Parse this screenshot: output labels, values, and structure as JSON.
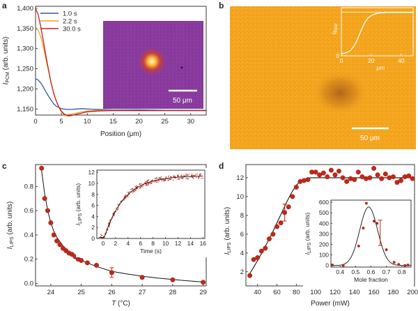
{
  "panels": {
    "a": {
      "label": "a",
      "chart": {
        "type": "line",
        "xlabel_parts": [
          "Position (",
          "μm",
          ")"
        ],
        "ylabel_parts": [
          "I",
          "PCM",
          " (arb. units)"
        ],
        "xlim": [
          0,
          33
        ],
        "ylim": [
          1135,
          1405
        ],
        "xticks": [
          0,
          5,
          10,
          15,
          20,
          25,
          30
        ],
        "yticks": [
          1150,
          1200,
          1250,
          1300,
          1350,
          1400
        ],
        "ytick_labels": [
          "1,150",
          "1,200",
          "1,250",
          "1,300",
          "1,350",
          "1,400"
        ],
        "legend_position": "top-left",
        "series": [
          {
            "name": "1.0 s",
            "color": "#3355aa",
            "x": [
              0,
              0.5,
              1,
              1.5,
              2,
              2.5,
              3,
              3.5,
              4,
              5,
              6,
              7,
              8,
              9,
              10,
              12,
              15,
              20,
              25,
              30,
              33
            ],
            "y": [
              1225,
              1222,
              1215,
              1205,
              1193,
              1182,
              1172,
              1163,
              1157,
              1151,
              1149,
              1149,
              1150,
              1151,
              1150,
              1149,
              1148,
              1148,
              1147,
              1147,
              1147
            ]
          },
          {
            "name": "2.2 s",
            "color": "#f0a020",
            "x": [
              0,
              0.5,
              1,
              1.5,
              2,
              2.5,
              3,
              3.5,
              4,
              4.5,
              5,
              5.5,
              6,
              7,
              8,
              9,
              10,
              12,
              15,
              20,
              25,
              30,
              33
            ],
            "y": [
              1350,
              1345,
              1330,
              1305,
              1275,
              1245,
              1215,
              1190,
              1170,
              1155,
              1142,
              1137,
              1136,
              1137,
              1140,
              1143,
              1145,
              1147,
              1147,
              1146,
              1146,
              1146,
              1146
            ]
          },
          {
            "name": "30.0 s",
            "color": "#c02020",
            "x": [
              0,
              0.5,
              1,
              1.5,
              2,
              2.5,
              3,
              3.5,
              4,
              4.5,
              5,
              5.5,
              6,
              6.5,
              7,
              8,
              9,
              10,
              11,
              12,
              15,
              20,
              25,
              30,
              33
            ],
            "y": [
              1400,
              1385,
              1355,
              1320,
              1283,
              1248,
              1215,
              1190,
              1170,
              1155,
              1145,
              1138,
              1134,
              1133,
              1134,
              1137,
              1140,
              1143,
              1144,
              1145,
              1146,
              1146,
              1146,
              1146,
              1146
            ]
          }
        ]
      },
      "inset": {
        "scale_bar": "50 μm"
      }
    },
    "b": {
      "label": "b",
      "scale_bar": "50 μm",
      "inset_chart": {
        "type": "line",
        "ylabel_parts": [
          "I",
          "fluor"
        ],
        "xlabel": "μm",
        "xlim": [
          0,
          48
        ],
        "ylim": [
          0,
          1.1
        ],
        "xticks": [
          0,
          20,
          40
        ],
        "yticks": [
          0
        ],
        "ytick_labels": [
          "0"
        ],
        "plateau": 1.0,
        "x": [
          0,
          2,
          4,
          6,
          8,
          10,
          12,
          14,
          16,
          18,
          20,
          22,
          24,
          26,
          28,
          30,
          33,
          36,
          40,
          44,
          48
        ],
        "y": [
          0.05,
          0.06,
          0.08,
          0.12,
          0.2,
          0.32,
          0.48,
          0.64,
          0.78,
          0.87,
          0.92,
          0.95,
          0.97,
          0.98,
          0.98,
          0.99,
          0.99,
          0.99,
          0.99,
          0.99,
          0.99
        ]
      }
    },
    "c": {
      "label": "c",
      "chart": {
        "type": "scatter",
        "xlabel_parts": [
          "T",
          " (°C)"
        ],
        "ylabel_parts": [
          "I",
          "LIPS",
          " (arb. units)"
        ],
        "xlim": [
          23.5,
          29.1
        ],
        "ylim": [
          -0.02,
          0.98
        ],
        "xticks": [
          24,
          25,
          26,
          27,
          28,
          29
        ],
        "yticks": [
          0,
          0.2,
          0.4,
          0.6,
          0.8
        ],
        "ytick_labels": [
          "0.0",
          "0.2",
          "0.4",
          "0.6",
          "0.8"
        ],
        "points": {
          "x": [
            23.7,
            23.8,
            23.9,
            24.0,
            24.1,
            24.2,
            24.3,
            24.4,
            24.5,
            24.6,
            24.7,
            24.8,
            24.9,
            25.0,
            25.2,
            25.5,
            26.0,
            27.0,
            28.0,
            29.0
          ],
          "y": [
            0.95,
            0.7,
            0.6,
            0.5,
            0.4,
            0.35,
            0.32,
            0.29,
            0.27,
            0.25,
            0.24,
            0.22,
            0.2,
            0.19,
            0.17,
            0.15,
            0.09,
            0.05,
            0.03,
            0.01
          ],
          "error_bar": {
            "x": 26.0,
            "y": 0.09,
            "err": 0.04
          }
        },
        "fit": {
          "x": [
            23.7,
            23.8,
            23.9,
            24.0,
            24.1,
            24.2,
            24.4,
            24.6,
            24.8,
            25.0,
            25.5,
            26.0,
            26.5,
            27.0,
            27.5,
            28.0,
            28.5,
            29.0
          ],
          "y": [
            0.93,
            0.74,
            0.6,
            0.5,
            0.43,
            0.38,
            0.31,
            0.26,
            0.22,
            0.19,
            0.14,
            0.1,
            0.078,
            0.06,
            0.045,
            0.033,
            0.022,
            0.012
          ]
        }
      },
      "inset": {
        "type": "scatter",
        "xlabel": "Time (s)",
        "ylabel_parts": [
          "I",
          "LIPS",
          " (arb. units)"
        ],
        "xlim": [
          -1,
          16.3
        ],
        "ylim": [
          0,
          12.4
        ],
        "xticks": [
          0,
          2,
          4,
          6,
          8,
          10,
          12,
          14,
          16
        ],
        "yticks": [
          0,
          2,
          4,
          6,
          8,
          10,
          12
        ],
        "fit_amplitude": 11.2,
        "fit_tau": 3.2,
        "fit_t0": 0.2,
        "noise_count": 300,
        "noise_amp": 0.45
      }
    },
    "d": {
      "label": "d",
      "chart": {
        "type": "scatter",
        "xlabel": "Power (mW)",
        "ylabel_parts": [
          "I",
          "LIPS",
          " (arb. units)"
        ],
        "xlim": [
          28,
          202
        ],
        "ylim": [
          0.5,
          13.4
        ],
        "xticks": [
          40,
          60,
          80,
          100,
          120,
          140,
          160,
          180,
          200
        ],
        "yticks": [
          2,
          4,
          6,
          8,
          10,
          12
        ],
        "points": {
          "x": [
            32,
            36,
            40,
            44,
            48,
            52,
            56,
            60,
            64,
            68,
            72,
            76,
            80,
            84,
            88,
            92,
            96,
            100,
            104,
            108,
            112,
            116,
            120,
            124,
            128,
            132,
            136,
            140,
            144,
            148,
            152,
            156,
            160,
            164,
            168,
            172,
            176,
            180,
            184,
            188,
            192,
            196,
            200
          ],
          "y": [
            1.6,
            3.3,
            3.5,
            4.2,
            4.5,
            5.5,
            6.0,
            6.8,
            7.2,
            8.3,
            8.9,
            10.0,
            11.0,
            11.6,
            11.7,
            11.8,
            12.6,
            12.6,
            12.3,
            12.5,
            12.1,
            12.8,
            12.3,
            12.7,
            12.0,
            11.6,
            11.9,
            11.8,
            12.6,
            12.1,
            11.9,
            12.0,
            13.0,
            12.3,
            11.9,
            12.4,
            12.0,
            12.1,
            11.5,
            11.7,
            12.1,
            12.2,
            11.9
          ],
          "error_bar": {
            "x": 68,
            "y": 8.3,
            "err": 0.9
          }
        },
        "fit": {
          "x": [
            30,
            35,
            40,
            45,
            50,
            55,
            60,
            65,
            70,
            75,
            80,
            85,
            90,
            95,
            100,
            110,
            120,
            140,
            160,
            180,
            200
          ],
          "y": [
            1.5,
            2.3,
            3.2,
            4.1,
            5.1,
            6.1,
            7.2,
            8.3,
            9.4,
            10.4,
            11.2,
            11.7,
            11.9,
            12.0,
            12.0,
            12.0,
            12.0,
            12.0,
            12.0,
            12.0,
            12.0
          ]
        }
      },
      "inset": {
        "type": "scatter",
        "xlabel": "Mole fraction",
        "ylabel_parts": [
          "I",
          "LIPS",
          " (arb. units)"
        ],
        "xlim": [
          0.34,
          0.86
        ],
        "ylim": [
          -15,
          620
        ],
        "xticks": [
          0.4,
          0.5,
          0.6,
          0.7,
          0.8
        ],
        "yticks": [
          0,
          100,
          200,
          300,
          400,
          500,
          600
        ],
        "points": {
          "x": [
            0.35,
            0.42,
            0.52,
            0.55,
            0.57,
            0.62,
            0.64,
            0.7,
            0.75,
            0.78,
            0.82,
            0.84
          ],
          "y": [
            5,
            0,
            185,
            355,
            590,
            420,
            400,
            150,
            30,
            10,
            0,
            5
          ],
          "error_bar": {
            "x": 0.66,
            "y": 310,
            "err": 120
          }
        },
        "fit_peak": 555,
        "fit_center": 0.585,
        "fit_sigma": 0.058
      }
    }
  },
  "colors": {
    "marker": "#c0281a",
    "marker_edge": "#8a1a10",
    "fit": "#111111",
    "inset_a_bg": "#8a3b9e",
    "panel_b_bg": "#f4a51e",
    "panel_b_spot": "#b9661a"
  }
}
